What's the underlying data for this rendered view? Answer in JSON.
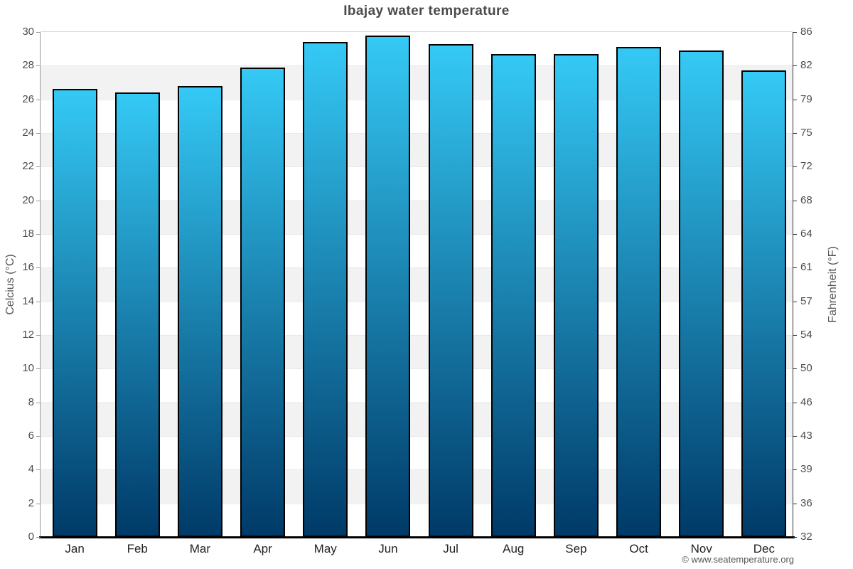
{
  "chart_data": {
    "type": "bar",
    "title": "Ibajay water temperature",
    "categories": [
      "Jan",
      "Feb",
      "Mar",
      "Apr",
      "May",
      "Jun",
      "Jul",
      "Aug",
      "Sep",
      "Oct",
      "Nov",
      "Dec"
    ],
    "values": [
      26.6,
      26.4,
      26.8,
      27.9,
      29.4,
      29.8,
      29.3,
      28.7,
      28.7,
      29.1,
      28.9,
      27.7
    ],
    "ylabel": "Celcius (°C)",
    "ylabel_right": "Fahrenheit (°F)",
    "xlabel": "",
    "ylim": [
      0,
      30
    ],
    "yticks_celsius": [
      0,
      2,
      4,
      6,
      8,
      10,
      12,
      14,
      16,
      18,
      20,
      22,
      24,
      26,
      28,
      30
    ],
    "yticks_fahrenheit": [
      32,
      36,
      39,
      43,
      46,
      50,
      54,
      57,
      61,
      64,
      68,
      72,
      75,
      79,
      82,
      86
    ],
    "legend_position": "none",
    "grid": "alternating horizontal bands",
    "colors": {
      "bar_gradient_top": "#35c9f5",
      "bar_gradient_bottom": "#003a68",
      "bar_border": "#000000",
      "band_gray": "#f2f2f2",
      "band_white": "#ffffff",
      "title_text": "#4a4a4a",
      "axis_text": "#4d4d4d"
    }
  },
  "footer": {
    "copyright": "© www.seatemperature.org"
  }
}
